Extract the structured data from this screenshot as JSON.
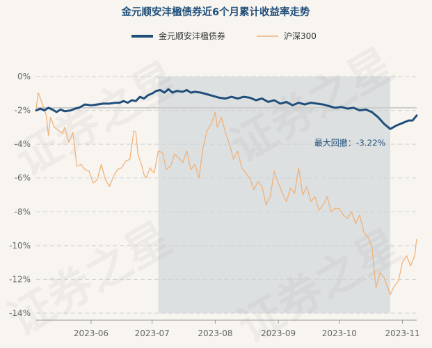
{
  "chart_data": {
    "type": "line",
    "title": "金元顺安沣楹债券近6个月累计收益率走势",
    "watermark": "证券之星",
    "x_ticks": [
      "2023-06",
      "2023-07",
      "2023-08",
      "2023-09",
      "2023-10",
      "2023-11"
    ],
    "x_range": [
      "2023-05-05",
      "2023-11-08"
    ],
    "y_ticks": [
      "0%",
      "-2%",
      "-4%",
      "-6%",
      "-8%",
      "-10%",
      "-12%",
      "-14%"
    ],
    "y_range": [
      -14,
      0
    ],
    "grid": "horizontal dashed",
    "legend_position": "top-center",
    "reference_line": -1.85,
    "drawdown": {
      "label": "最大回撤：-3.22%",
      "start": "2023-07-04",
      "end": "2023-10-26"
    },
    "series": [
      {
        "name": "金元顺安沣楹债券",
        "color": "#1f4e7a",
        "points": [
          [
            "2023-05-05",
            -2.0
          ],
          [
            "2023-05-07",
            -1.9
          ],
          [
            "2023-05-09",
            -2.0
          ],
          [
            "2023-05-11",
            -1.85
          ],
          [
            "2023-05-13",
            -1.95
          ],
          [
            "2023-05-15",
            -2.1
          ],
          [
            "2023-05-17",
            -1.95
          ],
          [
            "2023-05-19",
            -2.05
          ],
          [
            "2023-05-22",
            -2.0
          ],
          [
            "2023-05-24",
            -1.9
          ],
          [
            "2023-05-26",
            -1.85
          ],
          [
            "2023-05-29",
            -1.65
          ],
          [
            "2023-06-01",
            -1.7
          ],
          [
            "2023-06-04",
            -1.65
          ],
          [
            "2023-06-07",
            -1.6
          ],
          [
            "2023-06-10",
            -1.6
          ],
          [
            "2023-06-13",
            -1.55
          ],
          [
            "2023-06-15",
            -1.55
          ],
          [
            "2023-06-17",
            -1.45
          ],
          [
            "2023-06-19",
            -1.55
          ],
          [
            "2023-06-21",
            -1.4
          ],
          [
            "2023-06-23",
            -1.45
          ],
          [
            "2023-06-25",
            -1.2
          ],
          [
            "2023-06-27",
            -1.3
          ],
          [
            "2023-06-29",
            -1.1
          ],
          [
            "2023-07-01",
            -1.0
          ],
          [
            "2023-07-03",
            -0.85
          ],
          [
            "2023-07-05",
            -0.8
          ],
          [
            "2023-07-07",
            -0.95
          ],
          [
            "2023-07-09",
            -0.75
          ],
          [
            "2023-07-11",
            -0.95
          ],
          [
            "2023-07-13",
            -0.85
          ],
          [
            "2023-07-16",
            -0.9
          ],
          [
            "2023-07-18",
            -0.8
          ],
          [
            "2023-07-20",
            -0.95
          ],
          [
            "2023-07-22",
            -0.9
          ],
          [
            "2023-07-25",
            -0.95
          ],
          [
            "2023-07-28",
            -1.05
          ],
          [
            "2023-07-31",
            -1.15
          ],
          [
            "2023-08-03",
            -1.25
          ],
          [
            "2023-08-06",
            -1.3
          ],
          [
            "2023-08-09",
            -1.2
          ],
          [
            "2023-08-12",
            -1.3
          ],
          [
            "2023-08-15",
            -1.2
          ],
          [
            "2023-08-18",
            -1.25
          ],
          [
            "2023-08-21",
            -1.4
          ],
          [
            "2023-08-24",
            -1.3
          ],
          [
            "2023-08-27",
            -1.5
          ],
          [
            "2023-08-30",
            -1.4
          ],
          [
            "2023-09-02",
            -1.6
          ],
          [
            "2023-09-05",
            -1.5
          ],
          [
            "2023-09-08",
            -1.7
          ],
          [
            "2023-09-11",
            -1.55
          ],
          [
            "2023-09-14",
            -1.65
          ],
          [
            "2023-09-17",
            -1.55
          ],
          [
            "2023-09-20",
            -1.6
          ],
          [
            "2023-09-23",
            -1.65
          ],
          [
            "2023-09-26",
            -1.75
          ],
          [
            "2023-09-29",
            -1.85
          ],
          [
            "2023-10-02",
            -1.8
          ],
          [
            "2023-10-05",
            -1.9
          ],
          [
            "2023-10-08",
            -1.85
          ],
          [
            "2023-10-11",
            -2.0
          ],
          [
            "2023-10-14",
            -1.95
          ],
          [
            "2023-10-17",
            -2.1
          ],
          [
            "2023-10-20",
            -2.4
          ],
          [
            "2023-10-23",
            -2.8
          ],
          [
            "2023-10-26",
            -3.1
          ],
          [
            "2023-10-29",
            -2.9
          ],
          [
            "2023-11-01",
            -2.75
          ],
          [
            "2023-11-04",
            -2.6
          ],
          [
            "2023-11-06",
            -2.6
          ],
          [
            "2023-11-08",
            -2.3
          ]
        ]
      },
      {
        "name": "沪深300",
        "color": "#f0b27a",
        "points": [
          [
            "2023-05-05",
            -1.9
          ],
          [
            "2023-05-06",
            -0.95
          ],
          [
            "2023-05-08",
            -1.6
          ],
          [
            "2023-05-10",
            -2.3
          ],
          [
            "2023-05-11",
            -3.5
          ],
          [
            "2023-05-12",
            -2.4
          ],
          [
            "2023-05-14",
            -3.0
          ],
          [
            "2023-05-16",
            -3.2
          ],
          [
            "2023-05-18",
            -3.35
          ],
          [
            "2023-05-19",
            -3.0
          ],
          [
            "2023-05-21",
            -3.9
          ],
          [
            "2023-05-23",
            -3.3
          ],
          [
            "2023-05-25",
            -5.3
          ],
          [
            "2023-05-27",
            -5.2
          ],
          [
            "2023-05-29",
            -5.5
          ],
          [
            "2023-05-31",
            -5.6
          ],
          [
            "2023-06-02",
            -6.3
          ],
          [
            "2023-06-04",
            -6.1
          ],
          [
            "2023-06-06",
            -5.2
          ],
          [
            "2023-06-08",
            -6.1
          ],
          [
            "2023-06-10",
            -6.5
          ],
          [
            "2023-06-12",
            -5.9
          ],
          [
            "2023-06-14",
            -5.5
          ],
          [
            "2023-06-16",
            -5.4
          ],
          [
            "2023-06-18",
            -5.0
          ],
          [
            "2023-06-20",
            -4.9
          ],
          [
            "2023-06-22",
            -3.2
          ],
          [
            "2023-06-23",
            -3.3
          ],
          [
            "2023-06-24",
            -4.6
          ],
          [
            "2023-06-26",
            -5.3
          ],
          [
            "2023-06-27",
            -5.8
          ],
          [
            "2023-06-28",
            -6.0
          ],
          [
            "2023-06-30",
            -5.4
          ],
          [
            "2023-07-01",
            -5.6
          ],
          [
            "2023-07-02",
            -5.7
          ],
          [
            "2023-07-04",
            -4.4
          ],
          [
            "2023-07-06",
            -4.5
          ],
          [
            "2023-07-08",
            -5.5
          ],
          [
            "2023-07-10",
            -5.3
          ],
          [
            "2023-07-12",
            -4.6
          ],
          [
            "2023-07-14",
            -4.8
          ],
          [
            "2023-07-16",
            -5.1
          ],
          [
            "2023-07-18",
            -4.4
          ],
          [
            "2023-07-20",
            -5.5
          ],
          [
            "2023-07-22",
            -5.2
          ],
          [
            "2023-07-24",
            -6.0
          ],
          [
            "2023-07-26",
            -4.2
          ],
          [
            "2023-07-28",
            -3.2
          ],
          [
            "2023-07-30",
            -2.8
          ],
          [
            "2023-08-01",
            -2.1
          ],
          [
            "2023-08-02",
            -3.0
          ],
          [
            "2023-08-04",
            -2.4
          ],
          [
            "2023-08-06",
            -3.3
          ],
          [
            "2023-08-08",
            -4.0
          ],
          [
            "2023-08-10",
            -4.9
          ],
          [
            "2023-08-12",
            -4.4
          ],
          [
            "2023-08-14",
            -5.4
          ],
          [
            "2023-08-16",
            -5.7
          ],
          [
            "2023-08-18",
            -6.0
          ],
          [
            "2023-08-20",
            -6.7
          ],
          [
            "2023-08-22",
            -6.2
          ],
          [
            "2023-08-24",
            -6.5
          ],
          [
            "2023-08-26",
            -7.6
          ],
          [
            "2023-08-28",
            -7.1
          ],
          [
            "2023-08-30",
            -5.6
          ],
          [
            "2023-09-01",
            -6.3
          ],
          [
            "2023-09-03",
            -6.9
          ],
          [
            "2023-09-05",
            -7.4
          ],
          [
            "2023-09-07",
            -6.6
          ],
          [
            "2023-09-09",
            -6.9
          ],
          [
            "2023-09-11",
            -5.4
          ],
          [
            "2023-09-13",
            -7.0
          ],
          [
            "2023-09-15",
            -6.5
          ],
          [
            "2023-09-17",
            -7.4
          ],
          [
            "2023-09-19",
            -7.1
          ],
          [
            "2023-09-21",
            -7.9
          ],
          [
            "2023-09-23",
            -7.6
          ],
          [
            "2023-09-25",
            -7.1
          ],
          [
            "2023-09-27",
            -8.0
          ],
          [
            "2023-09-29",
            -7.8
          ],
          [
            "2023-10-01",
            -7.8
          ],
          [
            "2023-10-03",
            -8.2
          ],
          [
            "2023-10-05",
            -8.4
          ],
          [
            "2023-10-07",
            -8.0
          ],
          [
            "2023-10-09",
            -8.7
          ],
          [
            "2023-10-11",
            -8.2
          ],
          [
            "2023-10-13",
            -9.2
          ],
          [
            "2023-10-15",
            -9.5
          ],
          [
            "2023-10-17",
            -10.1
          ],
          [
            "2023-10-19",
            -12.5
          ],
          [
            "2023-10-21",
            -11.6
          ],
          [
            "2023-10-23",
            -11.9
          ],
          [
            "2023-10-26",
            -12.9
          ],
          [
            "2023-10-28",
            -12.4
          ],
          [
            "2023-10-30",
            -12.1
          ],
          [
            "2023-11-01",
            -11.0
          ],
          [
            "2023-11-03",
            -10.6
          ],
          [
            "2023-11-05",
            -11.2
          ],
          [
            "2023-11-07",
            -10.6
          ],
          [
            "2023-11-08",
            -9.6
          ]
        ]
      }
    ]
  }
}
